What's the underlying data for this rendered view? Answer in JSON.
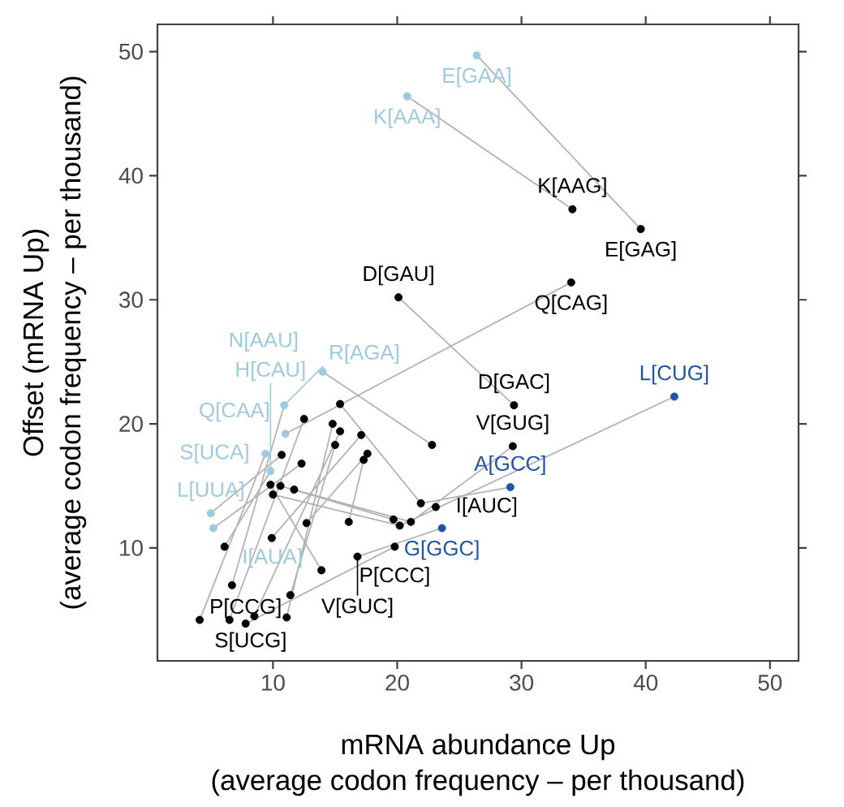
{
  "chart_data": {
    "type": "scatter",
    "xlabel": "mRNA abundance Up",
    "ylabel": "Offset (mRNA Up)",
    "xlim": [
      0.7,
      52.3
    ],
    "ylim": [
      0.9,
      52.2
    ],
    "xticks": [
      10,
      20,
      30,
      40,
      50
    ],
    "yticks": [
      10,
      20,
      30,
      40,
      50
    ],
    "marker": "circle",
    "series": [
      {
        "type": "line",
        "marker": "none",
        "color": "#b3b3b3",
        "x": [
          26.4,
          39.6,
          null,
          20.8,
          34.1,
          null,
          20.1,
          29.4,
          null,
          34.0,
          11.0,
          null,
          42.3,
          20.2,
          null,
          29.3,
          21.1,
          null,
          14.0,
          22.8,
          null,
          29.1,
          21.9,
          null,
          23.6,
          16.8,
          null,
          4.1,
          9.4,
          null,
          6.5,
          12.5,
          null,
          8.5,
          15.4,
          null,
          11.1,
          14.8,
          null,
          7.8,
          19.8,
          null,
          6.7,
          10.9,
          null,
          6.1,
          9.8,
          null,
          5.0,
          10.7,
          null,
          5.2,
          12.3,
          null,
          11.4,
          15.0,
          null,
          13.9,
          9.8,
          null,
          9.9,
          17.1,
          null,
          12.7,
          17.6,
          null,
          10.6,
          19.7,
          null,
          11.7,
          21.1,
          null,
          10.0,
          20.2,
          null,
          15.4,
          21.9,
          null,
          16.1,
          17.3
        ],
        "values": [
          49.7,
          35.7,
          null,
          46.4,
          37.3,
          null,
          30.2,
          21.5,
          null,
          31.4,
          19.2,
          null,
          22.2,
          11.8,
          null,
          18.2,
          12.1,
          null,
          24.2,
          18.3,
          null,
          14.9,
          13.6,
          null,
          11.6,
          9.3,
          null,
          4.2,
          17.6,
          null,
          4.2,
          20.4,
          null,
          4.5,
          19.4,
          null,
          4.4,
          20.0,
          null,
          3.9,
          10.1,
          null,
          7.0,
          21.5,
          null,
          10.1,
          16.2,
          null,
          12.8,
          17.5,
          null,
          11.6,
          16.8,
          null,
          6.2,
          18.3,
          null,
          8.2,
          15.1,
          null,
          10.8,
          19.1,
          null,
          12.0,
          17.6,
          null,
          15.0,
          12.3,
          null,
          14.7,
          12.1,
          null,
          14.3,
          11.8,
          null,
          21.6,
          13.6,
          null,
          12.1,
          17.1
        ]
      },
      {
        "color": "#000000",
        "x": [
          34.1,
          39.6,
          34.0,
          20.1,
          29.4,
          29.3,
          22.8,
          19.8,
          19.7,
          20.2,
          21.1,
          21.9,
          23.1,
          15.4,
          12.5,
          14.8,
          15.4,
          17.1,
          15.0,
          17.6,
          17.3,
          10.7,
          12.3,
          9.8,
          10.6,
          11.7,
          10.0,
          12.7,
          16.1,
          6.1,
          9.9,
          13.9,
          16.8,
          6.7,
          11.4,
          4.1,
          6.5,
          7.8,
          8.5,
          11.1
        ],
        "values": [
          37.3,
          35.7,
          31.4,
          30.2,
          21.5,
          18.2,
          18.3,
          10.1,
          12.3,
          11.8,
          12.1,
          13.6,
          13.3,
          21.6,
          20.4,
          20.0,
          19.4,
          19.1,
          18.3,
          17.6,
          17.1,
          17.5,
          16.8,
          15.1,
          15.0,
          14.7,
          14.3,
          12.0,
          12.1,
          10.1,
          10.8,
          8.2,
          9.3,
          7.0,
          6.2,
          4.2,
          4.2,
          3.9,
          4.5,
          4.4
        ]
      },
      {
        "color": "#9ecae1",
        "x": [
          26.4,
          20.8,
          14.0,
          10.9,
          11.0,
          9.4,
          9.8,
          5.0,
          5.2
        ],
        "values": [
          49.7,
          46.4,
          24.2,
          21.5,
          19.2,
          17.6,
          16.2,
          12.8,
          11.6
        ]
      },
      {
        "color": "#2153a3",
        "x": [
          42.3,
          29.1,
          23.6
        ],
        "values": [
          22.2,
          14.9,
          11.6
        ]
      }
    ],
    "annotations": [
      "(average codon frequency – per thousand)",
      "(average codon frequency – per thousand)",
      {
        "text": "E[GAA]",
        "x": 26.4,
        "y": 49.7
      },
      {
        "text": "K[AAA]",
        "x": 20.8,
        "y": 46.4
      },
      {
        "text": "K[AAG]",
        "x": 34.1,
        "y": 37.3
      },
      {
        "text": "E[GAG]",
        "x": 39.6,
        "y": 35.7
      },
      {
        "text": "Q[CAG]",
        "x": 34.0,
        "y": 31.4
      },
      {
        "text": "D[GAU]",
        "x": 20.1,
        "y": 30.2
      },
      {
        "text": "D[GAC]",
        "x": 29.4,
        "y": 21.5
      },
      {
        "text": "V[GUG]",
        "x": 29.3,
        "y": 18.2
      },
      {
        "text": "L[CUG]",
        "x": 42.3,
        "y": 22.2
      },
      {
        "text": "A[GCC]",
        "x": 29.1,
        "y": 14.9
      },
      {
        "text": "I[AUC]",
        "x": 23.1,
        "y": 13.3
      },
      {
        "text": "G[GGC]",
        "x": 23.6,
        "y": 11.6
      },
      {
        "text": "P[CCC]",
        "x": 19.8,
        "y": 10.1
      },
      {
        "text": "V[GUC]",
        "x": 16.8,
        "y": 9.3
      },
      {
        "text": "P[CCG]",
        "x": 7.8,
        "y": 3.9
      },
      {
        "text": "S[UCG]",
        "x": 4.1,
        "y": 4.2
      },
      {
        "text": "I[AUA]",
        "x": 5.2,
        "y": 11.6
      },
      {
        "text": "L[UUA]",
        "x": 5.0,
        "y": 12.8
      },
      {
        "text": "S[UCA]",
        "x": 9.4,
        "y": 17.6
      },
      {
        "text": "H[CAU]",
        "x": 9.8,
        "y": 16.2
      },
      {
        "text": "Q[CAA]",
        "x": 11.0,
        "y": 19.2
      },
      {
        "text": "R[AGA]",
        "x": 10.9,
        "y": 21.5
      },
      {
        "text": "N[AAU]",
        "x": 14.0,
        "y": 24.2
      }
    ]
  }
}
